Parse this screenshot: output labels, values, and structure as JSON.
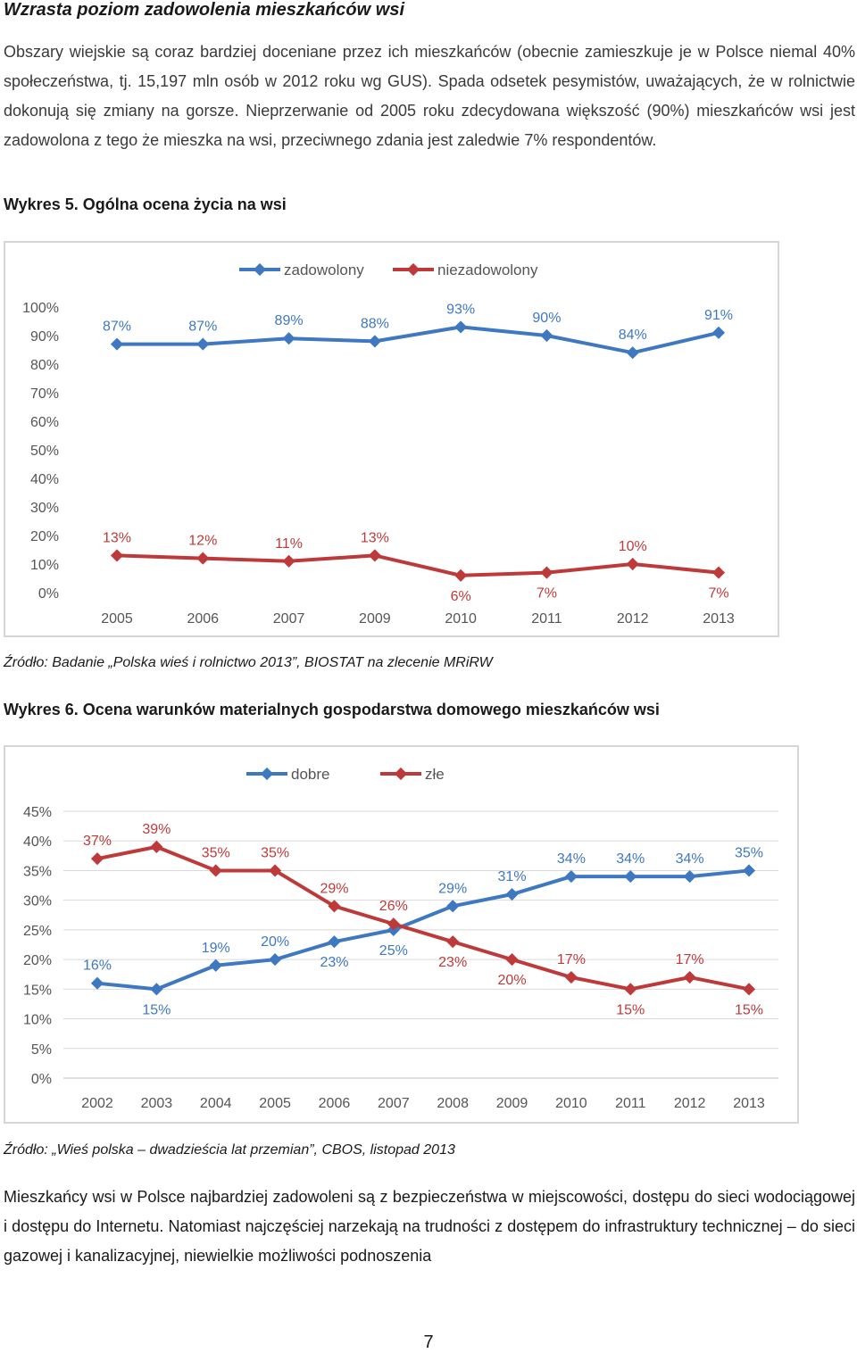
{
  "heading": "Wzrasta poziom zadowolenia mieszkańców wsi",
  "paragraph1": "Obszary wiejskie są coraz bardziej doceniane przez ich mieszkańców (obecnie zamieszkuje je w Polsce niemal 40% społeczeństwa, tj. 15,197 mln osób w 2012 roku wg GUS). Spada odsetek pesymistów, uważających, że w rolnictwie dokonują się zmiany na gorsze. Nieprzerwanie od 2005 roku zdecydowana większość (90%) mieszkańców wsi jest zadowolona z tego że mieszka na wsi, przeciwnego zdania jest zaledwie 7% respondentów.",
  "caption1": "Wykres 5. Ogólna ocena życia na wsi",
  "source1": "Źródło: Badanie „Polska wieś i rolnictwo 2013”, BIOSTAT na zlecenie MRiRW",
  "caption2": "Wykres 6. Ocena warunków materialnych gospodarstwa domowego mieszkańców wsi",
  "source2": "Źródło: „Wieś polska – dwadzieścia lat przemian”, CBOS, listopad 2013",
  "paragraph3": "Mieszkańcy wsi w Polsce najbardziej zadowoleni są z bezpieczeństwa w miejscowości, dostępu do sieci wodociągowej i dostępu do Internetu. Natomiast najczęściej narzekają na trudności z dostępem do infrastruktury technicznej – do sieci gazowej i kanalizacyjnej, niewielkie możliwości podnoszenia",
  "page_number": "7",
  "colors": {
    "blue": "#3e78c1",
    "red": "#be3a3a"
  },
  "chart_data": [
    {
      "type": "line",
      "title": "Wykres 5. Ogólna ocena życia na wsi",
      "categories": [
        "2005",
        "2006",
        "2007",
        "2009",
        "2010",
        "2011",
        "2012",
        "2013"
      ],
      "series": [
        {
          "name": "zadowolony",
          "values": [
            87,
            87,
            89,
            88,
            93,
            90,
            84,
            91
          ],
          "labels": [
            "87%",
            "87%",
            "89%",
            "88%",
            "93%",
            "90%",
            "84%",
            "91%"
          ],
          "color": "#3e78c1"
        },
        {
          "name": "niezadowolony",
          "values": [
            13,
            12,
            11,
            13,
            6,
            7,
            10,
            7
          ],
          "labels": [
            "13%",
            "12%",
            "11%",
            "13%",
            "6%",
            "7%",
            "10%",
            "7%"
          ],
          "color": "#be3a3a"
        }
      ],
      "yticks": [
        "0%",
        "10%",
        "20%",
        "30%",
        "40%",
        "50%",
        "60%",
        "70%",
        "80%",
        "90%",
        "100%"
      ],
      "ylim": [
        0,
        100
      ],
      "grid": false,
      "legend": "top"
    },
    {
      "type": "line",
      "title": "Wykres 6. Ocena warunków materialnych gospodarstwa domowego mieszkańców wsi",
      "categories": [
        "2002",
        "2003",
        "2004",
        "2005",
        "2006",
        "2007",
        "2008",
        "2009",
        "2010",
        "2011",
        "2012",
        "2013"
      ],
      "series": [
        {
          "name": "dobre",
          "values": [
            16,
            15,
            19,
            20,
            23,
            25,
            29,
            31,
            34,
            34,
            34,
            35
          ],
          "labels": [
            "16%",
            "15%",
            "19%",
            "20%",
            "23%",
            "25%",
            "29%",
            "31%",
            "34%",
            "34%",
            "34%",
            "35%"
          ],
          "color": "#3e78c1"
        },
        {
          "name": "złe",
          "values": [
            37,
            39,
            35,
            35,
            29,
            26,
            23,
            20,
            17,
            15,
            17,
            15
          ],
          "labels": [
            "37%",
            "39%",
            "35%",
            "35%",
            "29%",
            "26%",
            "23%",
            "20%",
            "17%",
            "15%",
            "17%",
            "15%"
          ],
          "color": "#be3a3a"
        }
      ],
      "yticks": [
        "0%",
        "5%",
        "10%",
        "15%",
        "20%",
        "25%",
        "30%",
        "35%",
        "40%",
        "45%"
      ],
      "ylim": [
        0,
        45
      ],
      "grid": true,
      "legend": "top"
    }
  ]
}
